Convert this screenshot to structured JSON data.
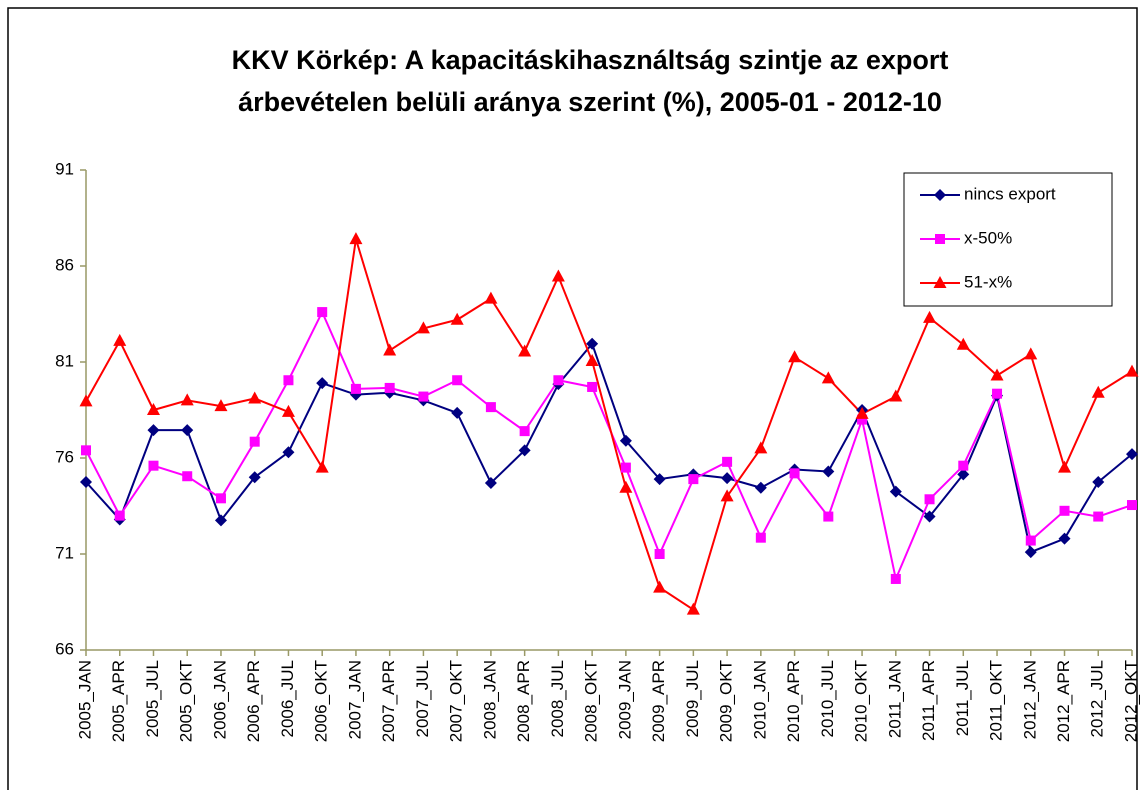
{
  "chart_data": {
    "type": "line",
    "title": [
      "KKV Körkép: A kapacitáskihasználtság szintje az export",
      "árbevételen belüli aránya szerint (%), 2005-01 - 2012-10"
    ],
    "categories": [
      "2005_JAN",
      "2005_APR",
      "2005_JUL",
      "2005_OKT",
      "2006_JAN",
      "2006_APR",
      "2006_JUL",
      "2006_OKT",
      "2007_JAN",
      "2007_APR",
      "2007_JUL",
      "2007_OKT",
      "2008_JAN",
      "2008_APR",
      "2008_JUL",
      "2008_OKT",
      "2009_JAN",
      "2009_APR",
      "2009_JUL",
      "2009_OKT",
      "2010_JAN",
      "2010_APR",
      "2010_JUL",
      "2010_OKT",
      "2011_JAN",
      "2011_APR",
      "2011_JUL",
      "2011_OKT",
      "2012_JAN",
      "2012_APR",
      "2012_JUL",
      "2012_OKT"
    ],
    "series": [
      {
        "name": "nincs export",
        "color": "#000080",
        "marker": "diamond",
        "values": [
          74.75,
          72.8,
          77.45,
          77.45,
          72.75,
          75.0,
          76.3,
          79.9,
          79.3,
          79.4,
          79.0,
          78.35,
          74.7,
          76.4,
          79.85,
          81.95,
          76.9,
          74.9,
          75.15,
          74.95,
          74.45,
          75.4,
          75.3,
          78.5,
          74.25,
          72.95,
          75.15,
          79.25,
          71.1,
          71.8,
          74.75,
          76.2
        ]
      },
      {
        "name": "x-50%",
        "color": "#FF00FF",
        "marker": "square",
        "values": [
          76.4,
          73.0,
          75.6,
          75.05,
          73.9,
          76.85,
          80.05,
          83.6,
          79.6,
          79.65,
          79.2,
          80.05,
          78.65,
          77.4,
          80.05,
          79.7,
          75.5,
          71.0,
          74.9,
          75.8,
          71.85,
          75.2,
          72.95,
          78.0,
          69.7,
          73.85,
          75.6,
          79.35,
          71.7,
          73.25,
          72.95,
          73.55
        ]
      },
      {
        "name": "51-x%",
        "color": "#FF0000",
        "marker": "triangle",
        "values": [
          78.95,
          82.1,
          78.5,
          79.0,
          78.7,
          79.1,
          78.4,
          75.5,
          87.4,
          81.6,
          82.75,
          83.2,
          84.3,
          81.55,
          85.45,
          81.05,
          74.45,
          69.25,
          68.1,
          74.0,
          76.5,
          81.25,
          80.15,
          78.3,
          79.2,
          83.3,
          81.9,
          80.3,
          81.4,
          75.5,
          79.4,
          80.5
        ]
      }
    ],
    "ylim": [
      66,
      91
    ],
    "yticks": [
      66,
      71,
      76,
      81,
      86,
      91
    ],
    "legend": "top-right"
  }
}
